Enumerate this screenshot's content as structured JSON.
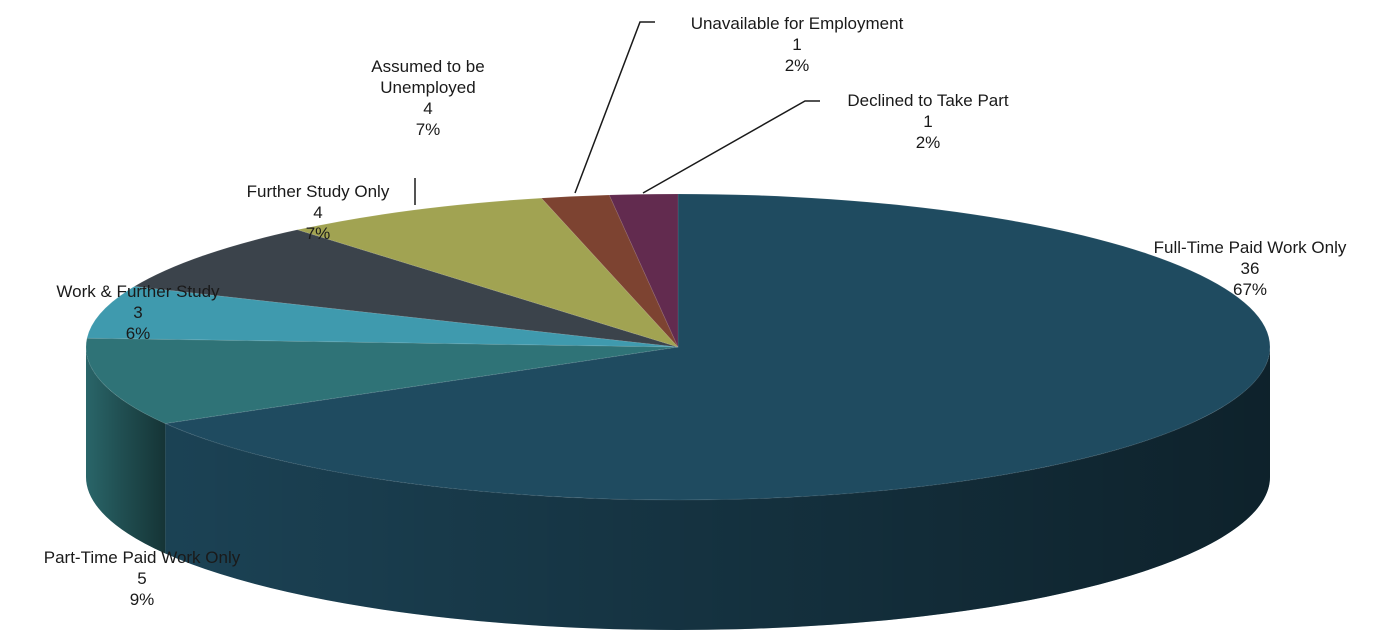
{
  "chart_data": {
    "type": "pie",
    "variant": "3d",
    "title": "",
    "slices": [
      {
        "label": "Full-Time Paid Work Only",
        "label_lines": [
          "Full-Time Paid Work Only"
        ],
        "value": 36,
        "percent": "67%",
        "color": "#1f4b60"
      },
      {
        "label": "Part-Time Paid Work Only",
        "label_lines": [
          "Part-Time Paid Work Only"
        ],
        "value": 5,
        "percent": "9%",
        "color": "#2f7377"
      },
      {
        "label": "Work & Further Study",
        "label_lines": [
          "Work & Further Study"
        ],
        "value": 3,
        "percent": "6%",
        "color": "#3f9aae"
      },
      {
        "label": "Further Study Only",
        "label_lines": [
          "Further Study Only"
        ],
        "value": 4,
        "percent": "7%",
        "color": "#3b434b"
      },
      {
        "label": "Assumed to be Unemployed",
        "label_lines": [
          "Assumed to be",
          "Unemployed"
        ],
        "value": 4,
        "percent": "7%",
        "color": "#a1a352"
      },
      {
        "label": "Unavailable for Employment",
        "label_lines": [
          "Unavailable for Employment"
        ],
        "value": 1,
        "percent": "2%",
        "color": "#7d4331"
      },
      {
        "label": "Declined to Take Part",
        "label_lines": [
          "Declined to Take Part"
        ],
        "value": 1,
        "percent": "2%",
        "color": "#622b4f"
      }
    ]
  }
}
